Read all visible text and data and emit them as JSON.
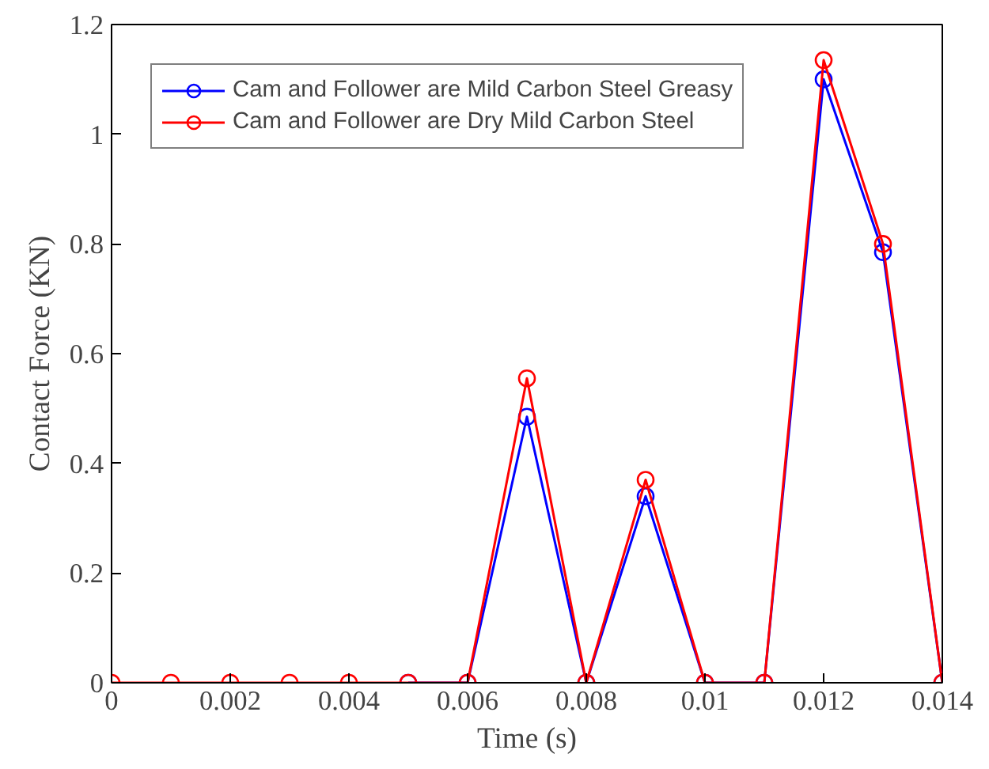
{
  "chart_data": {
    "type": "line",
    "xlabel": "Time (s)",
    "ylabel": "Contact Force (KN)",
    "x": [
      0,
      0.001,
      0.002,
      0.003,
      0.004,
      0.005,
      0.006,
      0.007,
      0.008,
      0.009,
      0.01,
      0.011,
      0.012,
      0.013,
      0.014
    ],
    "series": [
      {
        "name": "Cam and Follower are Mild Carbon Steel Greasy",
        "color": "#0000ff",
        "values": [
          null,
          null,
          null,
          null,
          null,
          0,
          0,
          0.485,
          0,
          0.34,
          0,
          0,
          1.1,
          0.785,
          0
        ]
      },
      {
        "name": "Cam and Follower are Dry Mild Carbon Steel",
        "color": "#ff0000",
        "values": [
          0,
          0,
          0,
          0,
          0,
          0,
          0,
          0.555,
          0,
          0.37,
          0,
          0,
          1.135,
          0.8,
          0
        ]
      }
    ],
    "xlim": [
      0,
      0.014
    ],
    "ylim": [
      0,
      1.2
    ],
    "xticks": [
      0,
      0.002,
      0.004,
      0.006,
      0.008,
      0.01,
      0.012,
      0.014
    ],
    "yticks": [
      0,
      0.2,
      0.4,
      0.6,
      0.8,
      1,
      1.2
    ],
    "grid": false,
    "legend": "top left",
    "marker": "circle",
    "line_style": "solid"
  }
}
